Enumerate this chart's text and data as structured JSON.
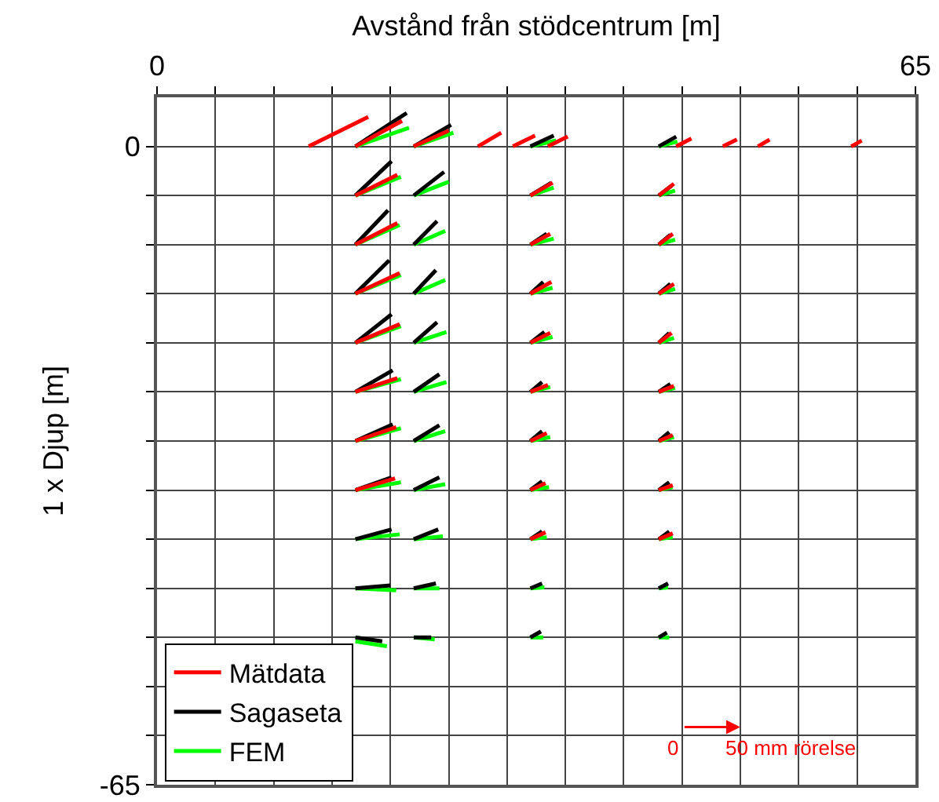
{
  "chart_data": {
    "type": "line",
    "xlabel": "Avstånd från stödcentrum [m]",
    "ylabel": "1 x Djup [m]",
    "xlim": [
      0,
      65
    ],
    "ylim": [
      -65,
      5
    ],
    "xticks": [
      0,
      {
        "value": 5,
        "label": null
      },
      {
        "value": 10,
        "label": null
      },
      {
        "value": 15,
        "label": null
      },
      {
        "value": 20,
        "label": null
      },
      {
        "value": 25,
        "label": null
      },
      {
        "value": 30,
        "label": null
      },
      {
        "value": 35,
        "label": null
      },
      {
        "value": 40,
        "label": null
      },
      {
        "value": 45,
        "label": null
      },
      {
        "value": 50,
        "label": null
      },
      {
        "value": 55,
        "label": null
      },
      {
        "value": 60,
        "label": null
      },
      65
    ],
    "yticks": [
      0,
      {
        "value": -5,
        "label": null
      },
      {
        "value": -10,
        "label": null
      },
      {
        "value": -15,
        "label": null
      },
      {
        "value": -20,
        "label": null
      },
      {
        "value": -25,
        "label": null
      },
      {
        "value": -30,
        "label": null
      },
      {
        "value": -35,
        "label": null
      },
      {
        "value": -40,
        "label": null
      },
      {
        "value": -45,
        "label": null
      },
      {
        "value": -50,
        "label": null
      },
      {
        "value": -55,
        "label": null
      },
      {
        "value": -60,
        "label": null
      },
      -65
    ],
    "grid": true,
    "legend": "bottom left",
    "marker": "none",
    "line_style": "solid",
    "series": [
      {
        "name": "Mätdata",
        "color": "#ff0000",
        "x": [
          13,
          18.1,
          null,
          22,
          25.0,
          null,
          27.5,
          29.5,
          null,
          30.5,
          32.4,
          null,
          33.5,
          35.2,
          null,
          44.5,
          45.8,
          null,
          48.5,
          49.7,
          null,
          51.5,
          52.5,
          null,
          59.5,
          60.4
        ],
        "values": [
          0,
          3.0,
          null,
          0,
          1.6,
          null,
          0,
          1.4,
          null,
          0,
          1.1,
          null,
          0,
          1.0,
          null,
          0,
          0.8,
          null,
          0,
          0.7,
          null,
          0,
          0.7,
          null,
          0,
          0.6
        ]
      },
      {
        "color": "#ff0000",
        "x": [
          17,
          21.0
        ],
        "values": [
          0,
          2.6
        ]
      },
      {
        "color": "#ff0000",
        "x": [
          17,
          20.6,
          null,
          32,
          33.9,
          null,
          43,
          44.3
        ],
        "values": [
          -5,
          -2.9,
          null,
          -5,
          -3.7,
          null,
          -5,
          -3.8
        ]
      },
      {
        "color": "#ff0000",
        "x": [
          17,
          20.6,
          null,
          32,
          33.7,
          null,
          43,
          44.2
        ],
        "values": [
          -10,
          -7.8,
          null,
          -10,
          -8.9,
          null,
          -10,
          -8.9
        ]
      },
      {
        "color": "#ff0000",
        "x": [
          17,
          20.8,
          null,
          32,
          33.8,
          null,
          43,
          44.3
        ],
        "values": [
          -15,
          -12.9,
          null,
          -15,
          -13.8,
          null,
          -15,
          -14.0
        ]
      },
      {
        "color": "#ff0000",
        "x": [
          17,
          20.8,
          null,
          32,
          33.7,
          null,
          43,
          44.1
        ],
        "values": [
          -20,
          -18.1,
          null,
          -20,
          -19.0,
          null,
          -20,
          -19.0
        ]
      },
      {
        "color": "#ff0000",
        "x": [
          17,
          20.6,
          null,
          32,
          33.5,
          null,
          43,
          44.3
        ],
        "values": [
          -25,
          -23.6,
          null,
          -25,
          -24.3,
          null,
          -25,
          -24.4
        ]
      },
      {
        "color": "#ff0000",
        "x": [
          17,
          20.5,
          null,
          32,
          33.4,
          null,
          43,
          44.2
        ],
        "values": [
          -30,
          -28.6,
          null,
          -30,
          -29.2,
          null,
          -30,
          -29.4
        ]
      },
      {
        "color": "#ff0000",
        "x": [
          17,
          20.4,
          null,
          32,
          33.3,
          null,
          43,
          44.2
        ],
        "values": [
          -35,
          -33.8,
          null,
          -35,
          -34.3,
          null,
          -35,
          -34.5
        ]
      },
      {
        "color": "#ff0000",
        "x": [
          32,
          33.3,
          null,
          43,
          44.2
        ],
        "values": [
          -40,
          -39.3,
          null,
          -40,
          -39.4
        ]
      },
      {
        "name": "Sagaseta",
        "color": "#000000",
        "x": [
          17,
          21.4,
          null,
          22,
          25.2,
          null,
          32,
          34.0,
          null,
          43,
          44.5
        ],
        "values": [
          0,
          3.4,
          null,
          0,
          2.2,
          null,
          0,
          1.1,
          null,
          0,
          1.0
        ]
      },
      {
        "color": "#000000",
        "x": [
          17,
          20.1,
          null,
          22,
          24.6,
          null,
          32,
          33.8,
          null,
          43,
          44.1
        ],
        "values": [
          -5,
          -1.5,
          null,
          -5,
          -2.6,
          null,
          -5,
          -3.7,
          null,
          -5,
          -4.0
        ]
      },
      {
        "color": "#000000",
        "x": [
          17,
          19.8,
          null,
          22,
          24.0,
          null,
          32,
          33.4,
          null,
          43,
          44.0
        ],
        "values": [
          -10,
          -6.5,
          null,
          -10,
          -7.6,
          null,
          -10,
          -8.9,
          null,
          -10,
          -9.0
        ]
      },
      {
        "color": "#000000",
        "x": [
          17,
          19.9,
          null,
          22,
          23.9,
          null,
          32,
          33.1,
          null,
          43,
          44.0
        ],
        "values": [
          -15,
          -11.6,
          null,
          -15,
          -12.6,
          null,
          -15,
          -13.8,
          null,
          -15,
          -14.0
        ]
      },
      {
        "color": "#000000",
        "x": [
          17,
          20.1,
          null,
          22,
          24.0,
          null,
          32,
          33.2,
          null,
          43,
          43.9
        ],
        "values": [
          -20,
          -17.1,
          null,
          -20,
          -17.9,
          null,
          -20,
          -18.9,
          null,
          -20,
          -19.0
        ]
      },
      {
        "color": "#000000",
        "x": [
          17,
          20.2,
          null,
          22,
          24.2,
          null,
          32,
          33.0,
          null,
          43,
          44.0
        ],
        "values": [
          -25,
          -22.8,
          null,
          -25,
          -23.2,
          null,
          -25,
          -24.0,
          null,
          -25,
          -24.2
        ]
      },
      {
        "color": "#000000",
        "x": [
          17,
          20.2,
          null,
          22,
          24.2,
          null,
          32,
          33.0,
          null,
          43,
          43.9
        ],
        "values": [
          -30,
          -28.3,
          null,
          -30,
          -28.4,
          null,
          -30,
          -29.0,
          null,
          -30,
          -29.1
        ]
      },
      {
        "color": "#000000",
        "x": [
          17,
          20.1,
          null,
          22,
          24.2,
          null,
          32,
          33.0,
          null,
          43,
          43.9
        ],
        "values": [
          -35,
          -33.7,
          null,
          -35,
          -33.7,
          null,
          -35,
          -34.1,
          null,
          -35,
          -34.2
        ]
      },
      {
        "color": "#000000",
        "x": [
          17,
          20.1,
          null,
          22,
          24.1,
          null,
          32,
          33.0,
          null,
          43,
          43.9
        ],
        "values": [
          -40,
          -39.0,
          null,
          -40,
          -39.0,
          null,
          -40,
          -39.2,
          null,
          -40,
          -39.2
        ]
      },
      {
        "color": "#000000",
        "x": [
          17,
          20.0,
          null,
          22,
          23.9,
          null,
          32,
          33.0,
          null,
          43,
          43.8
        ],
        "values": [
          -45,
          -44.7,
          null,
          -45,
          -44.5,
          null,
          -45,
          -44.5,
          null,
          -45,
          -44.5
        ]
      },
      {
        "color": "#000000",
        "x": [
          17,
          19.3,
          null,
          22,
          23.5,
          null,
          32,
          32.9,
          null,
          43,
          43.7
        ],
        "values": [
          -50,
          -50.4,
          null,
          -50,
          -50.0,
          null,
          -50,
          -49.4,
          null,
          -50,
          -49.5
        ]
      },
      {
        "name": "FEM",
        "color": "#00ff00",
        "x": [
          17,
          21.6,
          null,
          22,
          25.4,
          null,
          32,
          34.2,
          null,
          43,
          44.6
        ],
        "values": [
          0,
          1.9,
          null,
          0,
          1.4,
          null,
          0,
          0.6,
          null,
          0,
          0.5
        ]
      },
      {
        "color": "#00ff00",
        "x": [
          17,
          20.9,
          null,
          22,
          25.0,
          null,
          32,
          34.0,
          null,
          43,
          44.4
        ],
        "values": [
          -5,
          -3.1,
          null,
          -5,
          -3.6,
          null,
          -5,
          -4.2,
          null,
          -5,
          -4.5
        ]
      },
      {
        "color": "#00ff00",
        "x": [
          17,
          20.8,
          null,
          22,
          24.7,
          null,
          32,
          34.0,
          null,
          43,
          44.4
        ],
        "values": [
          -10,
          -8.0,
          null,
          -10,
          -8.6,
          null,
          -10,
          -9.4,
          null,
          -10,
          -9.5
        ]
      },
      {
        "color": "#00ff00",
        "x": [
          17,
          20.9,
          null,
          22,
          24.7,
          null,
          32,
          33.9,
          null,
          43,
          44.4
        ],
        "values": [
          -15,
          -13.1,
          null,
          -15,
          -13.6,
          null,
          -15,
          -14.4,
          null,
          -15,
          -14.5
        ]
      },
      {
        "color": "#00ff00",
        "x": [
          17,
          20.9,
          null,
          22,
          24.8,
          null,
          32,
          33.9,
          null,
          43,
          44.3
        ],
        "values": [
          -20,
          -18.3,
          null,
          -20,
          -18.9,
          null,
          -20,
          -19.4,
          null,
          -20,
          -19.5
        ]
      },
      {
        "color": "#00ff00",
        "x": [
          17,
          20.9,
          null,
          22,
          24.8,
          null,
          32,
          33.7,
          null,
          43,
          44.4
        ],
        "values": [
          -25,
          -23.7,
          null,
          -25,
          -24.0,
          null,
          -25,
          -24.5,
          null,
          -25,
          -24.6
        ]
      },
      {
        "color": "#00ff00",
        "x": [
          17,
          20.9,
          null,
          22,
          24.7,
          null,
          32,
          33.7,
          null,
          43,
          44.3
        ],
        "values": [
          -30,
          -28.7,
          null,
          -30,
          -29.0,
          null,
          -30,
          -29.6,
          null,
          -30,
          -29.6
        ]
      },
      {
        "color": "#00ff00",
        "x": [
          17,
          20.9,
          null,
          22,
          24.7,
          null,
          32,
          33.6,
          null,
          43,
          44.2
        ],
        "values": [
          -35,
          -34.2,
          null,
          -35,
          -34.4,
          null,
          -35,
          -34.7,
          null,
          -35,
          -34.7
        ]
      },
      {
        "color": "#00ff00",
        "x": [
          17,
          20.8,
          null,
          22,
          24.5,
          null,
          32,
          33.4,
          null,
          43,
          44.2
        ],
        "values": [
          -40,
          -39.5,
          null,
          -40,
          -39.7,
          null,
          -40,
          -39.8,
          null,
          -40,
          -39.8
        ]
      },
      {
        "color": "#00ff00",
        "x": [
          17,
          20.5,
          null,
          22,
          24.2,
          null,
          32,
          33.2,
          null,
          43,
          43.8
        ],
        "values": [
          -45,
          -45.2,
          null,
          -45,
          -45.0,
          null,
          -45,
          -44.9,
          null,
          -45,
          -44.9
        ]
      },
      {
        "color": "#00ff00",
        "x": [
          17,
          19.7,
          null,
          22,
          23.8,
          null,
          32,
          33.1,
          null,
          43,
          43.9
        ],
        "values": [
          -50.4,
          -50.9,
          null,
          -50,
          -50.2,
          null,
          -50,
          -50.0,
          null,
          -50,
          -50.0
        ]
      }
    ],
    "annotations": [
      "0",
      "50 mm rörelse"
    ]
  }
}
